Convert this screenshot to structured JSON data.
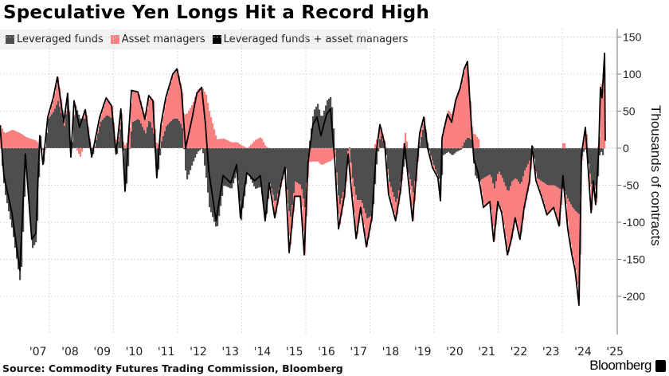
{
  "title": "Speculative Yen Longs Hit a Record High",
  "source": "Source: Commodity Futures Trading Commission, Bloomberg",
  "brand": "Bloomberg",
  "colors": {
    "leveraged_funds": "#4d4d4d",
    "asset_managers": "#fa8080",
    "combined": "#000000",
    "legend_bg": "#f2f2f2"
  },
  "chart_data": {
    "type": "area",
    "title": "Speculative Yen Longs Hit a Record High",
    "legend": [
      "Leveraged funds",
      "Asset managers",
      "Leveraged funds + asset managers"
    ],
    "legend_placement": "top-left",
    "ylabel": "Thousands of contracts",
    "y_axis_side": "right",
    "ylim": [
      -252,
      162
    ],
    "yticks": [
      150,
      100,
      50,
      0,
      -50,
      -100,
      -150,
      -200
    ],
    "xlim": [
      2006.45,
      2025.7
    ],
    "xticks": [
      "'07",
      "'08",
      "'09",
      "'10",
      "'11",
      "'12",
      "'13",
      "'14",
      "'15",
      "'16",
      "'17",
      "'18",
      "'19",
      "'20",
      "'21",
      "'22",
      "'23",
      "'24",
      "'25"
    ],
    "grid": true,
    "columns": [
      "year",
      "leveraged_funds",
      "asset_managers",
      "combined"
    ],
    "points": [
      [
        2006.46,
        0,
        31,
        31
      ],
      [
        2006.58,
        -57,
        20,
        -37
      ],
      [
        2006.83,
        -112,
        25,
        -87
      ],
      [
        2007.08,
        -185,
        20,
        -165
      ],
      [
        2007.25,
        -23,
        15,
        -8
      ],
      [
        2007.45,
        -135,
        12,
        -123
      ],
      [
        2007.58,
        -125,
        10,
        -115
      ],
      [
        2007.7,
        17,
        0,
        17
      ],
      [
        2007.8,
        -19,
        -3,
        -22
      ],
      [
        2007.95,
        40,
        2,
        42
      ],
      [
        2008.12,
        50,
        18,
        68
      ],
      [
        2008.25,
        64,
        32,
        96
      ],
      [
        2008.45,
        30,
        5,
        35
      ],
      [
        2008.57,
        70,
        4,
        74
      ],
      [
        2008.67,
        -10,
        -2,
        -12
      ],
      [
        2008.77,
        60,
        4,
        64
      ],
      [
        2008.94,
        40,
        -12,
        28
      ],
      [
        2009.12,
        40,
        12,
        52
      ],
      [
        2009.32,
        -12,
        0,
        -12
      ],
      [
        2009.57,
        35,
        7,
        42
      ],
      [
        2009.77,
        45,
        23,
        68
      ],
      [
        2009.94,
        40,
        17,
        57
      ],
      [
        2010.08,
        -10,
        2,
        -8
      ],
      [
        2010.23,
        40,
        13,
        53
      ],
      [
        2010.36,
        -60,
        2,
        -58
      ],
      [
        2010.56,
        35,
        43,
        78
      ],
      [
        2010.76,
        40,
        36,
        76
      ],
      [
        2010.98,
        20,
        19,
        39
      ],
      [
        2011.1,
        40,
        31,
        71
      ],
      [
        2011.23,
        20,
        44,
        64
      ],
      [
        2011.35,
        -40,
        0,
        -40
      ],
      [
        2011.48,
        10,
        22,
        32
      ],
      [
        2011.63,
        30,
        38,
        68
      ],
      [
        2011.85,
        40,
        60,
        100
      ],
      [
        2011.98,
        40,
        67,
        107
      ],
      [
        2012.12,
        30,
        48,
        78
      ],
      [
        2012.25,
        -45,
        45,
        0
      ],
      [
        2012.45,
        -20,
        60,
        40
      ],
      [
        2012.6,
        -5,
        79,
        74
      ],
      [
        2012.75,
        0,
        82,
        82
      ],
      [
        2012.87,
        -40,
        72,
        32
      ],
      [
        2012.97,
        -80,
        50,
        -30
      ],
      [
        2013.2,
        -110,
        12,
        -98
      ],
      [
        2013.42,
        -50,
        13,
        -37
      ],
      [
        2013.66,
        -55,
        8,
        -47
      ],
      [
        2013.84,
        -30,
        8,
        -22
      ],
      [
        2013.96,
        -98,
        4,
        -94
      ],
      [
        2014.16,
        -33,
        0,
        -33
      ],
      [
        2014.4,
        -55,
        11,
        -44
      ],
      [
        2014.58,
        -52,
        15,
        -37
      ],
      [
        2014.73,
        -100,
        2,
        -98
      ],
      [
        2014.86,
        -47,
        0,
        -47
      ],
      [
        2015.03,
        -75,
        -19,
        -94
      ],
      [
        2015.23,
        -40,
        -7,
        -47
      ],
      [
        2015.35,
        -25,
        -1,
        -26
      ],
      [
        2015.48,
        -100,
        -41,
        -141
      ],
      [
        2015.65,
        -45,
        -20,
        -65
      ],
      [
        2015.83,
        -50,
        -15,
        -65
      ],
      [
        2015.95,
        -80,
        -64,
        -144
      ],
      [
        2016.07,
        0,
        -19,
        -19
      ],
      [
        2016.22,
        50,
        -18,
        32
      ],
      [
        2016.35,
        60,
        -18,
        42
      ],
      [
        2016.47,
        40,
        -23,
        17
      ],
      [
        2016.65,
        65,
        -19,
        46
      ],
      [
        2016.77,
        70,
        -17,
        53
      ],
      [
        2016.9,
        -5,
        -10,
        -15
      ],
      [
        2017.02,
        -80,
        -29,
        -109
      ],
      [
        2017.2,
        -50,
        -15,
        -65
      ],
      [
        2017.32,
        10,
        -18,
        -8
      ],
      [
        2017.44,
        -40,
        -25,
        -65
      ],
      [
        2017.57,
        -70,
        -52,
        -122
      ],
      [
        2017.71,
        -70,
        -10,
        -80
      ],
      [
        2017.89,
        -95,
        -38,
        -133
      ],
      [
        2018.06,
        -90,
        -4,
        -94
      ],
      [
        2018.19,
        -20,
        12,
        -8
      ],
      [
        2018.31,
        20,
        12,
        32
      ],
      [
        2018.46,
        0,
        6,
        6
      ],
      [
        2018.58,
        -45,
        -17,
        -62
      ],
      [
        2018.8,
        -75,
        -23,
        -98
      ],
      [
        2018.96,
        -40,
        -15,
        -55
      ],
      [
        2019.08,
        -15,
        21,
        6
      ],
      [
        2019.33,
        -60,
        -38,
        -98
      ],
      [
        2019.55,
        10,
        10,
        20
      ],
      [
        2019.68,
        35,
        7,
        42
      ],
      [
        2019.8,
        0,
        0,
        0
      ],
      [
        2019.95,
        -20,
        -6,
        -26
      ],
      [
        2020.12,
        -40,
        0,
        -40
      ],
      [
        2020.2,
        -60,
        -11,
        -71
      ],
      [
        2020.25,
        -10,
        24,
        14
      ],
      [
        2020.42,
        -5,
        51,
        46
      ],
      [
        2020.55,
        -10,
        45,
        35
      ],
      [
        2020.67,
        -5,
        69,
        64
      ],
      [
        2020.82,
        -2,
        84,
        82
      ],
      [
        2020.94,
        10,
        97,
        107
      ],
      [
        2021.04,
        15,
        102,
        117
      ],
      [
        2021.17,
        10,
        18,
        28
      ],
      [
        2021.24,
        -35,
        20,
        -15
      ],
      [
        2021.37,
        -45,
        12,
        -33
      ],
      [
        2021.54,
        -40,
        -40,
        -80
      ],
      [
        2021.74,
        -35,
        -37,
        -72
      ],
      [
        2021.86,
        -55,
        -71,
        -126
      ],
      [
        2021.99,
        -30,
        -42,
        -72
      ],
      [
        2022.11,
        -40,
        -47,
        -87
      ],
      [
        2022.29,
        -60,
        -84,
        -144
      ],
      [
        2022.41,
        -45,
        -78,
        -123
      ],
      [
        2022.53,
        -40,
        -54,
        -94
      ],
      [
        2022.68,
        -50,
        -73,
        -123
      ],
      [
        2022.81,
        -30,
        -50,
        -80
      ],
      [
        2022.98,
        -15,
        -29,
        -44
      ],
      [
        2023.06,
        3,
        0,
        3
      ],
      [
        2023.18,
        -40,
        -4,
        -44
      ],
      [
        2023.35,
        -45,
        -20,
        -65
      ],
      [
        2023.52,
        -50,
        -40,
        -90
      ],
      [
        2023.73,
        -50,
        -30,
        -80
      ],
      [
        2023.9,
        -55,
        -50,
        -105
      ],
      [
        2024.02,
        -55,
        18,
        -37
      ],
      [
        2024.17,
        -70,
        -39,
        -109
      ],
      [
        2024.3,
        -80,
        -64,
        -144
      ],
      [
        2024.4,
        -85,
        -80,
        -165
      ],
      [
        2024.52,
        -90,
        -122,
        -212
      ],
      [
        2024.6,
        -8,
        0,
        -8
      ],
      [
        2024.72,
        0,
        28,
        28
      ],
      [
        2024.9,
        -50,
        -37,
        -87
      ],
      [
        2024.97,
        -40,
        -4,
        -44
      ],
      [
        2025.04,
        -70,
        -6,
        -76
      ],
      [
        2025.14,
        -10,
        10,
        0
      ],
      [
        2025.19,
        -5,
        87,
        82
      ],
      [
        2025.24,
        -10,
        78,
        68
      ],
      [
        2025.32,
        5,
        123,
        128
      ],
      [
        2025.34,
        5,
        5,
        10
      ]
    ]
  }
}
